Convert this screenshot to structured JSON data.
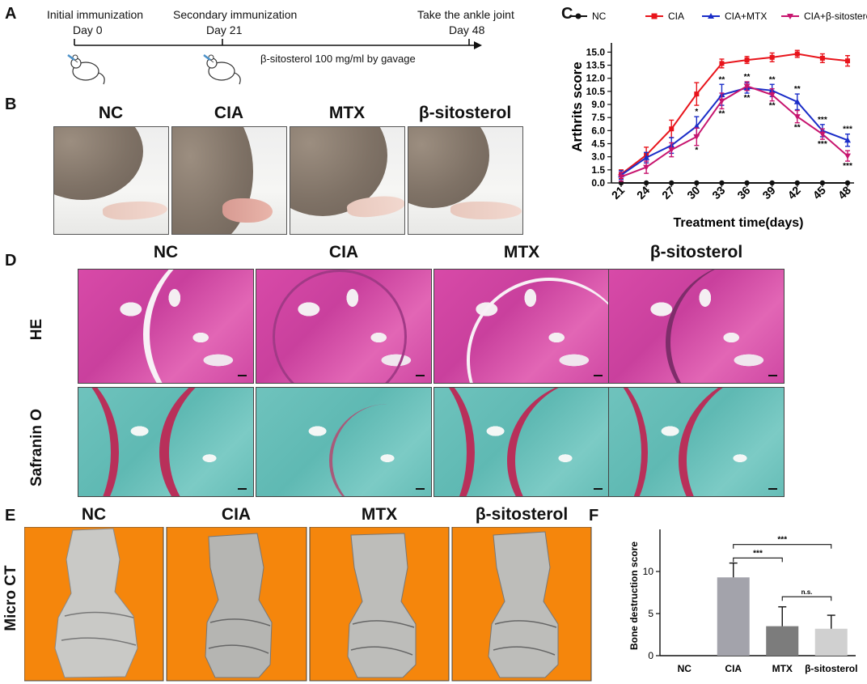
{
  "panel_letters": [
    "A",
    "B",
    "C",
    "D",
    "E",
    "F"
  ],
  "panelA": {
    "events": [
      {
        "name": "Initial immunization",
        "day": "Day 0"
      },
      {
        "name": "Secondary immunization",
        "day": "Day 21"
      },
      {
        "name": "Take the ankle joint",
        "day": "Day 48"
      }
    ],
    "treatment": "β-sitosterol 100 mg/ml by gavage"
  },
  "panelB": {
    "groups": [
      "NC",
      "CIA",
      "MTX",
      "β-sitosterol"
    ]
  },
  "panelD": {
    "groups": [
      "NC",
      "CIA",
      "MTX",
      "β-sitosterol"
    ],
    "rows": [
      "HE",
      "Safranin O"
    ]
  },
  "panelE": {
    "groups": [
      "NC",
      "CIA",
      "MTX",
      "β-sitosterol"
    ],
    "row": "Micro CT"
  },
  "colors": {
    "nc": "#111111",
    "cia": "#e8141b",
    "mtx": "#1a2dc8",
    "sito": "#c7156f",
    "orange": "#f5860c"
  },
  "chart_data": [
    {
      "type": "line",
      "panel": "C",
      "title": "",
      "xlabel": "Treatment time(days)",
      "ylabel": "Arthrits score",
      "x": [
        21,
        24,
        27,
        30,
        33,
        36,
        39,
        42,
        45,
        48
      ],
      "ylim": [
        0,
        15.5
      ],
      "yticks": [
        "0.0",
        "1.5",
        "3.0",
        "4.5",
        "6.0",
        "7.5",
        "9.0",
        "10.5",
        "12.0",
        "13.5",
        "15.0"
      ],
      "series": [
        {
          "name": "NC",
          "values": [
            0,
            0,
            0,
            0,
            0,
            0,
            0,
            0,
            0,
            0
          ],
          "err": [
            0,
            0,
            0,
            0,
            0,
            0,
            0,
            0,
            0,
            0
          ]
        },
        {
          "name": "CIA",
          "values": [
            1.0,
            3.2,
            6.2,
            10.2,
            13.7,
            14.1,
            14.4,
            14.8,
            14.3,
            14.0
          ],
          "err": [
            0.5,
            0.9,
            1.0,
            1.3,
            0.5,
            0.4,
            0.5,
            0.4,
            0.5,
            0.6
          ]
        },
        {
          "name": "CIA+MTX",
          "values": [
            0.9,
            2.9,
            4.3,
            6.5,
            10.1,
            10.9,
            10.6,
            9.3,
            6.0,
            4.9
          ],
          "err": [
            0.5,
            0.6,
            0.9,
            1.1,
            1.2,
            0.6,
            0.7,
            0.9,
            0.7,
            0.7
          ]
        },
        {
          "name": "CIA+β-sitosterol",
          "values": [
            0.7,
            1.8,
            3.8,
            5.3,
            9.4,
            11.1,
            10.1,
            7.6,
            5.6,
            3.1
          ],
          "err": [
            0.5,
            0.7,
            0.8,
            1.0,
            0.9,
            0.5,
            0.7,
            0.7,
            0.6,
            0.6
          ]
        }
      ],
      "annotations": [
        {
          "x": 30,
          "text": "*"
        },
        {
          "x": 30,
          "text": "*"
        },
        {
          "x": 33,
          "text": "**"
        },
        {
          "x": 33,
          "text": "**"
        },
        {
          "x": 36,
          "text": "**"
        },
        {
          "x": 36,
          "text": "**"
        },
        {
          "x": 39,
          "text": "**"
        },
        {
          "x": 39,
          "text": "**"
        },
        {
          "x": 42,
          "text": "**"
        },
        {
          "x": 42,
          "text": "**"
        },
        {
          "x": 45,
          "text": "***"
        },
        {
          "x": 45,
          "text": "***"
        },
        {
          "x": 48,
          "text": "***"
        },
        {
          "x": 48,
          "text": "***"
        }
      ],
      "legend": [
        "NC",
        "CIA",
        "CIA+MTX",
        "CIA+β-sitosterol"
      ],
      "legend_position": "top"
    },
    {
      "type": "bar",
      "panel": "F",
      "xlabel": "",
      "ylabel": "Bone destruction score",
      "categories": [
        "NC",
        "CIA",
        "MTX",
        "β-sitosterol"
      ],
      "values": [
        0,
        9.3,
        3.5,
        3.2
      ],
      "err": [
        0,
        1.7,
        2.3,
        1.6
      ],
      "ylim": [
        0,
        15
      ],
      "yticks": [
        "0",
        "5",
        "10"
      ],
      "bar_colors": [
        "#999999",
        "#a3a3ab",
        "#7c7c7c",
        "#d0d0d0"
      ],
      "significance": [
        {
          "from": "CIA",
          "to": "MTX",
          "text": "***"
        },
        {
          "from": "CIA",
          "to": "β-sitosterol",
          "text": "***"
        },
        {
          "from": "MTX",
          "to": "β-sitosterol",
          "text": "n.s."
        }
      ]
    }
  ]
}
